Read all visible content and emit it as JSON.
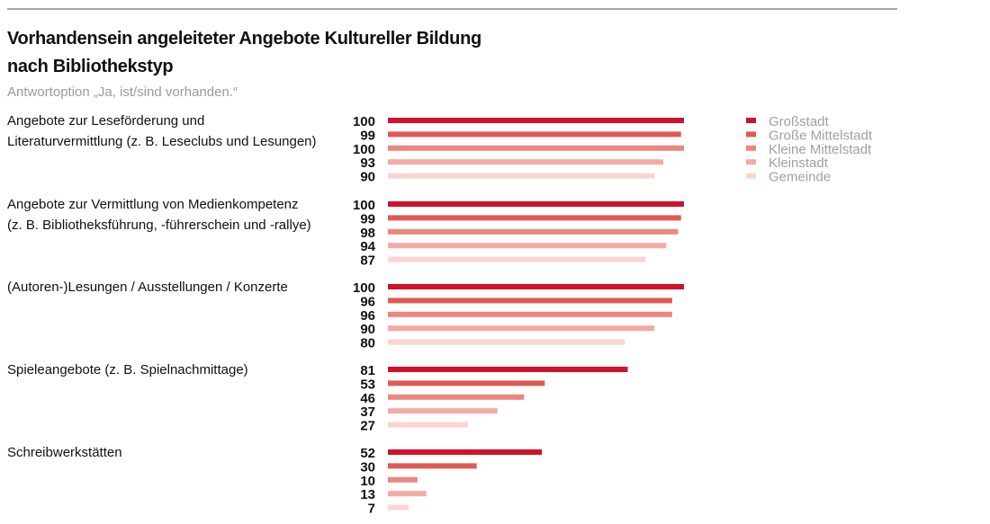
{
  "title": "Vorhandensein angeleiteter Angebote Kultureller Bildung nach Bibliothekstyp",
  "title_lines": [
    "Vorhandensein angeleiteter Angebote Kultureller Bildung",
    "nach Bibliothekstyp"
  ],
  "subtitle": "Antwortoption „Ja, ist/sind vorhanden.“",
  "chart_data": {
    "type": "bar",
    "orientation": "horizontal",
    "title": "Vorhandensein angeleiteter Angebote Kultureller Bildung nach Bibliothekstyp",
    "subtitle": "Antwortoption „Ja, ist/sind vorhanden.“",
    "xlim": [
      0,
      100
    ],
    "grid": false,
    "legend_position": "right",
    "categories": [
      {
        "lines": [
          "Angebote zur Leseförderung und",
          "Literaturvermittlung (z. B. Leseclubs und Lesungen)"
        ]
      },
      {
        "lines": [
          "Angebote zur Vermittlung von Medienkompetenz",
          "(z. B. Bibliotheksführung, -führerschein und -rallye)"
        ]
      },
      {
        "lines": [
          "(Autoren-)Lesungen / Ausstellungen / Konzerte"
        ]
      },
      {
        "lines": [
          "Spieleangebote (z. B. Spielnachmittage)"
        ]
      },
      {
        "lines": [
          "Schreibwerkstätten"
        ]
      }
    ],
    "series": [
      {
        "name": "Großstadt",
        "color": "#d0122e",
        "values": [
          100,
          100,
          100,
          81,
          52
        ]
      },
      {
        "name": "Große Mittelstadt",
        "color": "#e05a55",
        "values": [
          99,
          99,
          96,
          53,
          30
        ]
      },
      {
        "name": "Kleine Mittelstadt",
        "color": "#ec8680",
        "values": [
          100,
          98,
          96,
          46,
          10
        ]
      },
      {
        "name": "Kleinstadt",
        "color": "#f4aaa3",
        "values": [
          93,
          94,
          90,
          37,
          13
        ]
      },
      {
        "name": "Gemeinde",
        "color": "#fad4cf",
        "values": [
          90,
          87,
          80,
          27,
          7
        ]
      }
    ]
  }
}
